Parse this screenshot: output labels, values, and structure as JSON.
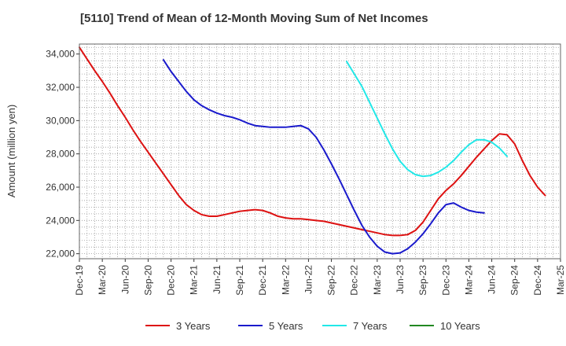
{
  "chart_data": {
    "type": "line",
    "title": "[5110]  Trend of Mean of 12-Month Moving Sum of Net Incomes",
    "xlabel": "",
    "ylabel": "Amount (million yen)",
    "ylim": [
      21700,
      34600
    ],
    "yticks": [
      22000,
      24000,
      26000,
      28000,
      30000,
      32000,
      34000
    ],
    "ytick_labels": [
      "22,000",
      "24,000",
      "26,000",
      "28,000",
      "30,000",
      "32,000",
      "34,000"
    ],
    "xtick_labels": [
      "Dec-19",
      "Mar-20",
      "Jun-20",
      "Sep-20",
      "Dec-20",
      "Mar-21",
      "Jun-21",
      "Sep-21",
      "Dec-21",
      "Mar-22",
      "Jun-22",
      "Sep-22",
      "Dec-22",
      "Mar-23",
      "Jun-23",
      "Sep-23",
      "Dec-23",
      "Mar-24",
      "Jun-24",
      "Sep-24",
      "Dec-24",
      "Mar-25"
    ],
    "x_start": "Dec-19",
    "n_months": 63,
    "grid": true,
    "legend_position": "bottom",
    "series": [
      {
        "name": "3 Years",
        "color": "#dd1111",
        "start_index": 0,
        "values": [
          34400,
          33700,
          33000,
          32350,
          31650,
          30900,
          30200,
          29450,
          28750,
          28100,
          27450,
          26800,
          26150,
          25500,
          24950,
          24600,
          24350,
          24250,
          24250,
          24350,
          24450,
          24550,
          24600,
          24650,
          24600,
          24450,
          24250,
          24150,
          24100,
          24100,
          24050,
          24000,
          23950,
          23850,
          23750,
          23650,
          23550,
          23450,
          23350,
          23250,
          23150,
          23100,
          23100,
          23150,
          23400,
          23900,
          24600,
          25300,
          25800,
          26200,
          26700,
          27250,
          27800,
          28300,
          28800,
          29200,
          29150,
          28600,
          27600,
          26700,
          26000,
          25500
        ]
      },
      {
        "name": "5 Years",
        "color": "#1a1acc",
        "start_index": 11,
        "values": [
          33650,
          32950,
          32350,
          31750,
          31250,
          30900,
          30650,
          30450,
          30300,
          30200,
          30050,
          29850,
          29700,
          29650,
          29600,
          29600,
          29600,
          29650,
          29700,
          29500,
          29000,
          28250,
          27400,
          26500,
          25550,
          24600,
          23700,
          23000,
          22450,
          22100,
          22000,
          22050,
          22300,
          22700,
          23200,
          23800,
          24450,
          24950,
          25050,
          24800,
          24600,
          24500,
          24450
        ]
      },
      {
        "name": "7 Years",
        "color": "#22e8e8",
        "start_index": 35,
        "values": [
          33550,
          32800,
          32050,
          31100,
          30150,
          29200,
          28300,
          27550,
          27050,
          26750,
          26650,
          26700,
          26900,
          27200,
          27600,
          28100,
          28550,
          28850,
          28850,
          28700,
          28350,
          27850
        ]
      },
      {
        "name": "10 Years",
        "color": "#228822",
        "start_index": 0,
        "values": []
      }
    ]
  }
}
